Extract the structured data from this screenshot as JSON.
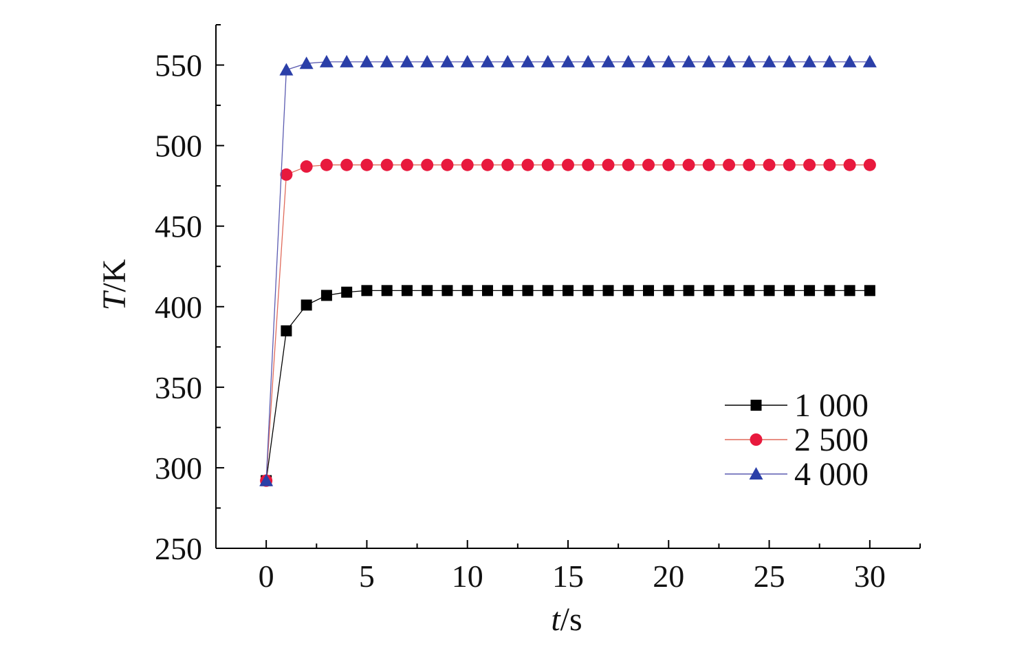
{
  "chart_data": {
    "type": "line",
    "title": "",
    "xlabel": {
      "var": "t",
      "unit": "/s"
    },
    "ylabel": {
      "var": "T",
      "unit": "/K"
    },
    "xlim": [
      -2.5,
      32.5
    ],
    "ylim": [
      250,
      575
    ],
    "xticks": [
      0,
      5,
      10,
      15,
      20,
      25,
      30
    ],
    "yticks": [
      250,
      300,
      350,
      400,
      450,
      500,
      550
    ],
    "grid": false,
    "legend_position": "right-lower",
    "x": [
      0,
      1,
      2,
      3,
      4,
      5,
      6,
      7,
      8,
      9,
      10,
      11,
      12,
      13,
      14,
      15,
      16,
      17,
      18,
      19,
      20,
      21,
      22,
      23,
      24,
      25,
      26,
      27,
      28,
      29,
      30
    ],
    "series": [
      {
        "name": "1 000",
        "marker": "square",
        "color": "#000000",
        "line_color": "#000000",
        "values": [
          292,
          385,
          401,
          407,
          409,
          410,
          410,
          410,
          410,
          410,
          410,
          410,
          410,
          410,
          410,
          410,
          410,
          410,
          410,
          410,
          410,
          410,
          410,
          410,
          410,
          410,
          410,
          410,
          410,
          410,
          410
        ]
      },
      {
        "name": "2 500",
        "marker": "circle",
        "color": "#e8193d",
        "line_color": "#e06a5a",
        "values": [
          292,
          482,
          487,
          488,
          488,
          488,
          488,
          488,
          488,
          488,
          488,
          488,
          488,
          488,
          488,
          488,
          488,
          488,
          488,
          488,
          488,
          488,
          488,
          488,
          488,
          488,
          488,
          488,
          488,
          488,
          488
        ]
      },
      {
        "name": "4 000",
        "marker": "triangle",
        "color": "#2b3fa8",
        "line_color": "#5a5ab0",
        "values": [
          292,
          547,
          551,
          552,
          552,
          552,
          552,
          552,
          552,
          552,
          552,
          552,
          552,
          552,
          552,
          552,
          552,
          552,
          552,
          552,
          552,
          552,
          552,
          552,
          552,
          552,
          552,
          552,
          552,
          552,
          552
        ]
      }
    ]
  }
}
